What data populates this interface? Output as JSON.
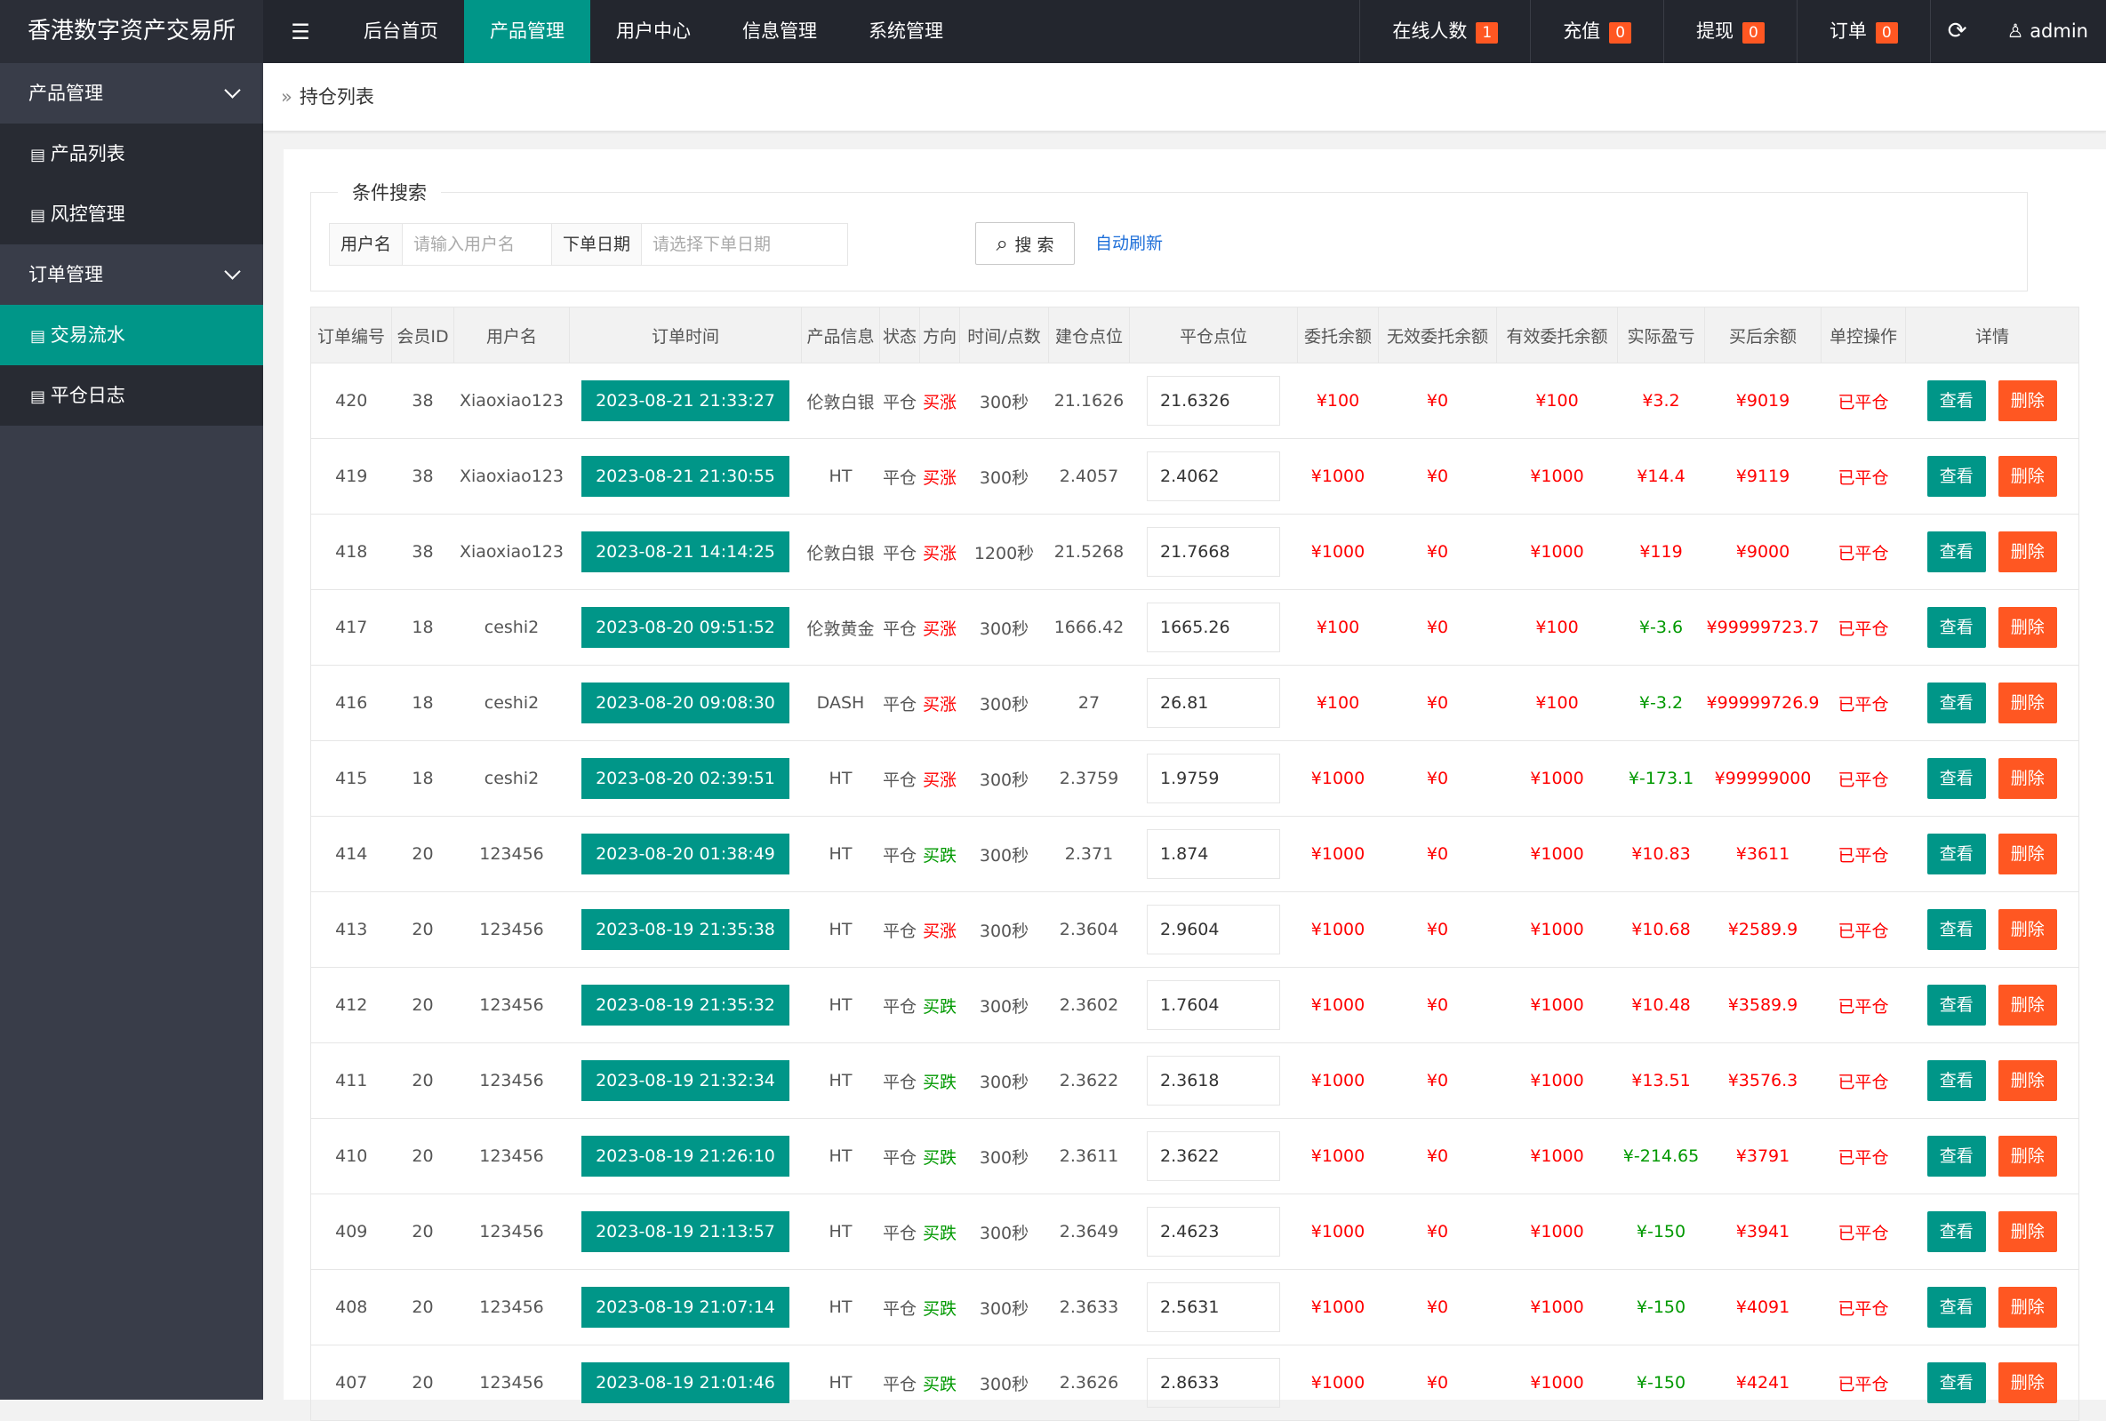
{
  "header": {
    "brand": "香港数字资产交易所",
    "menu_icon": "☰",
    "nav": [
      "后台首页",
      "产品管理",
      "用户中心",
      "信息管理",
      "系统管理"
    ],
    "active_nav": 1,
    "stats": [
      {
        "label": "在线人数",
        "badge": "1"
      },
      {
        "label": "充值",
        "badge": "0"
      },
      {
        "label": "提现",
        "badge": "0"
      },
      {
        "label": "订单",
        "badge": "0"
      }
    ],
    "user": "admin"
  },
  "sidebar": {
    "groups": [
      {
        "title": "产品管理",
        "items": [
          "产品列表",
          "风控管理"
        ]
      },
      {
        "title": "订单管理",
        "items": [
          "交易流水",
          "平仓日志"
        ]
      }
    ],
    "active": "1.0"
  },
  "breadcrumb": "持仓列表",
  "search": {
    "legend": "条件搜索",
    "fields": [
      {
        "label": "用户名",
        "placeholder": "请输入用户名"
      },
      {
        "label": "下单日期",
        "placeholder": "请选择下单日期"
      }
    ],
    "button": "搜 索",
    "auto_refresh": "自动刷新"
  },
  "table": {
    "headers": [
      "订单编号",
      "会员ID",
      "用户名",
      "订单时间",
      "产品信息",
      "状态",
      "方向",
      "时间/点数",
      "建仓点位",
      "平仓点位",
      "委托余额",
      "无效委托余额",
      "有效委托余额",
      "实际盈亏",
      "买后余额",
      "单控操作",
      "详情"
    ],
    "buttons": [
      "查看",
      "删除"
    ],
    "rows": [
      [
        "420",
        "38",
        "Xiaoxiao123",
        "2023-08-21 21:33:27",
        "伦敦白银",
        "平仓",
        "买涨",
        "300秒",
        "21.1626",
        "21.6326",
        "¥100",
        "¥0",
        "¥100",
        "¥3.2",
        "¥9019",
        "已平仓"
      ],
      [
        "419",
        "38",
        "Xiaoxiao123",
        "2023-08-21 21:30:55",
        "HT",
        "平仓",
        "买涨",
        "300秒",
        "2.4057",
        "2.4062",
        "¥1000",
        "¥0",
        "¥1000",
        "¥14.4",
        "¥9119",
        "已平仓"
      ],
      [
        "418",
        "38",
        "Xiaoxiao123",
        "2023-08-21 14:14:25",
        "伦敦白银",
        "平仓",
        "买涨",
        "1200秒",
        "21.5268",
        "21.7668",
        "¥1000",
        "¥0",
        "¥1000",
        "¥119",
        "¥9000",
        "已平仓"
      ],
      [
        "417",
        "18",
        "ceshi2",
        "2023-08-20 09:51:52",
        "伦敦黄金",
        "平仓",
        "买涨",
        "300秒",
        "1666.42",
        "1665.26",
        "¥100",
        "¥0",
        "¥100",
        "¥-3.6",
        "¥99999723.7",
        "已平仓"
      ],
      [
        "416",
        "18",
        "ceshi2",
        "2023-08-20 09:08:30",
        "DASH",
        "平仓",
        "买涨",
        "300秒",
        "27",
        "26.81",
        "¥100",
        "¥0",
        "¥100",
        "¥-3.2",
        "¥99999726.9",
        "已平仓"
      ],
      [
        "415",
        "18",
        "ceshi2",
        "2023-08-20 02:39:51",
        "HT",
        "平仓",
        "买涨",
        "300秒",
        "2.3759",
        "1.9759",
        "¥1000",
        "¥0",
        "¥1000",
        "¥-173.1",
        "¥99999000",
        "已平仓"
      ],
      [
        "414",
        "20",
        "123456",
        "2023-08-20 01:38:49",
        "HT",
        "平仓",
        "买跌",
        "300秒",
        "2.371",
        "1.874",
        "¥1000",
        "¥0",
        "¥1000",
        "¥10.83",
        "¥3611",
        "已平仓"
      ],
      [
        "413",
        "20",
        "123456",
        "2023-08-19 21:35:38",
        "HT",
        "平仓",
        "买涨",
        "300秒",
        "2.3604",
        "2.9604",
        "¥1000",
        "¥0",
        "¥1000",
        "¥10.68",
        "¥2589.9",
        "已平仓"
      ],
      [
        "412",
        "20",
        "123456",
        "2023-08-19 21:35:32",
        "HT",
        "平仓",
        "买跌",
        "300秒",
        "2.3602",
        "1.7604",
        "¥1000",
        "¥0",
        "¥1000",
        "¥10.48",
        "¥3589.9",
        "已平仓"
      ],
      [
        "411",
        "20",
        "123456",
        "2023-08-19 21:32:34",
        "HT",
        "平仓",
        "买跌",
        "300秒",
        "2.3622",
        "2.3618",
        "¥1000",
        "¥0",
        "¥1000",
        "¥13.51",
        "¥3576.3",
        "已平仓"
      ],
      [
        "410",
        "20",
        "123456",
        "2023-08-19 21:26:10",
        "HT",
        "平仓",
        "买跌",
        "300秒",
        "2.3611",
        "2.3622",
        "¥1000",
        "¥0",
        "¥1000",
        "¥-214.65",
        "¥3791",
        "已平仓"
      ],
      [
        "409",
        "20",
        "123456",
        "2023-08-19 21:13:57",
        "HT",
        "平仓",
        "买跌",
        "300秒",
        "2.3649",
        "2.4623",
        "¥1000",
        "¥0",
        "¥1000",
        "¥-150",
        "¥3941",
        "已平仓"
      ],
      [
        "408",
        "20",
        "123456",
        "2023-08-19 21:07:14",
        "HT",
        "平仓",
        "买跌",
        "300秒",
        "2.3633",
        "2.5631",
        "¥1000",
        "¥0",
        "¥1000",
        "¥-150",
        "¥4091",
        "已平仓"
      ],
      [
        "407",
        "20",
        "123456",
        "2023-08-19 21:01:46",
        "HT",
        "平仓",
        "买跌",
        "300秒",
        "2.3626",
        "2.8633",
        "¥1000",
        "¥0",
        "¥1000",
        "¥-150",
        "¥4241",
        "已平仓"
      ]
    ]
  }
}
